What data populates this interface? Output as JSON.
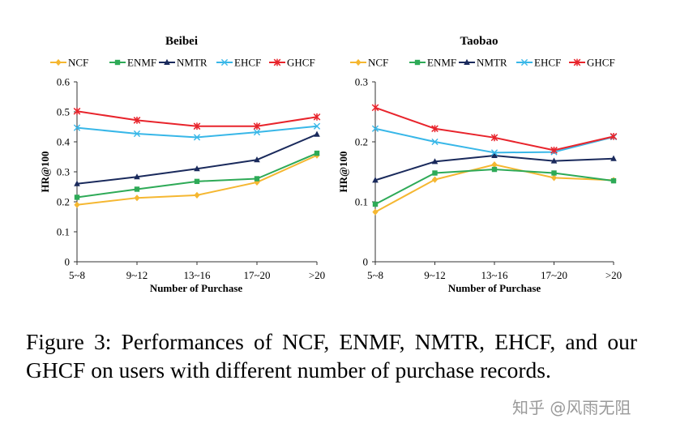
{
  "chart_data": [
    {
      "type": "line",
      "title": "Beibei",
      "categories": [
        "5~8",
        "9~12",
        "13~16",
        "17~20",
        ">20"
      ],
      "xlabel": "Number of Purchase",
      "ylabel": "HR@100",
      "ylim": [
        0,
        0.6
      ],
      "yticks": [
        "0",
        "0.1",
        "0.2",
        "0.3",
        "0.4",
        "0.5",
        "0.6"
      ],
      "grid": false,
      "legend": "top",
      "series": [
        {
          "name": "NCF",
          "color": "#f5b731",
          "marker": "diamond",
          "values": [
            0.19,
            0.213,
            0.222,
            0.265,
            0.355
          ]
        },
        {
          "name": "ENMF",
          "color": "#2eaa57",
          "marker": "square",
          "values": [
            0.215,
            0.242,
            0.268,
            0.277,
            0.362
          ]
        },
        {
          "name": "NMTR",
          "color": "#1a2a5c",
          "marker": "triangle",
          "values": [
            0.26,
            0.283,
            0.31,
            0.34,
            0.425
          ]
        },
        {
          "name": "EHCF",
          "color": "#38b7e8",
          "marker": "x",
          "values": [
            0.447,
            0.427,
            0.415,
            0.432,
            0.452
          ]
        },
        {
          "name": "GHCF",
          "color": "#e8242c",
          "marker": "star",
          "values": [
            0.502,
            0.472,
            0.452,
            0.452,
            0.483
          ]
        }
      ]
    },
    {
      "type": "line",
      "title": "Taobao",
      "categories": [
        "5~8",
        "9~12",
        "13~16",
        "17~20",
        ">20"
      ],
      "xlabel": "Number of Purchase",
      "ylabel": "HR@100",
      "ylim": [
        0,
        0.3
      ],
      "yticks": [
        "0",
        "0.1",
        "0.2",
        "0.3"
      ],
      "grid": false,
      "legend": "top",
      "series": [
        {
          "name": "NCF",
          "color": "#f5b731",
          "marker": "diamond",
          "values": [
            0.083,
            0.137,
            0.162,
            0.14,
            0.136
          ]
        },
        {
          "name": "ENMF",
          "color": "#2eaa57",
          "marker": "square",
          "values": [
            0.096,
            0.148,
            0.154,
            0.148,
            0.135
          ]
        },
        {
          "name": "NMTR",
          "color": "#1a2a5c",
          "marker": "triangle",
          "values": [
            0.136,
            0.167,
            0.177,
            0.168,
            0.172
          ]
        },
        {
          "name": "EHCF",
          "color": "#38b7e8",
          "marker": "x",
          "values": [
            0.222,
            0.2,
            0.182,
            0.183,
            0.208
          ]
        },
        {
          "name": "GHCF",
          "color": "#e8242c",
          "marker": "star",
          "values": [
            0.257,
            0.222,
            0.207,
            0.186,
            0.209
          ]
        }
      ]
    }
  ],
  "caption": "Figure 3: Performances of NCF, ENMF, NMTR, EHCF, and our GHCF on users with different number of purchase records.",
  "watermark": "知乎 @风雨无阻"
}
